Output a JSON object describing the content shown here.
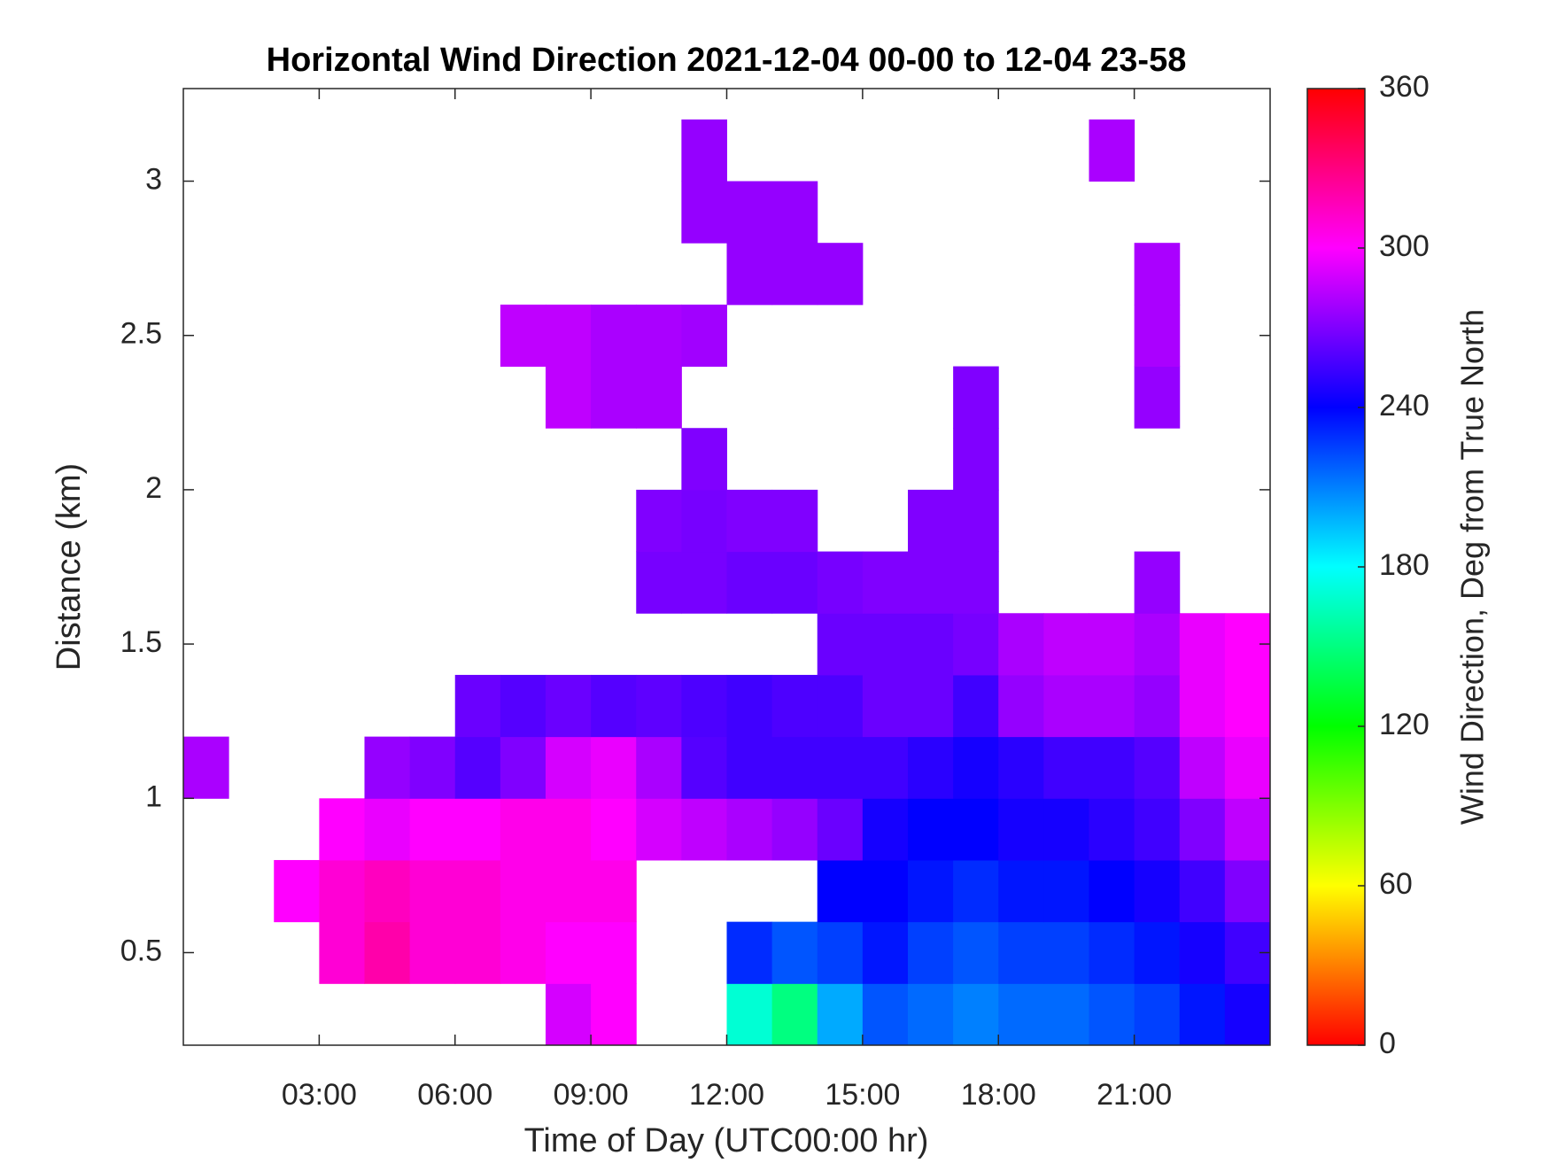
{
  "chart_data": {
    "type": "heatmap",
    "title": "Horizontal Wind Direction 2021-12-04 00-00 to 12-04 23-58",
    "xlabel": "Time of Day (UTC00:00 hr)",
    "ylabel": "Distance (km)",
    "colorbar_label": "Wind Direction, Deg from True North",
    "colormap": "hsv",
    "x": [
      0.5,
      1.5,
      2.5,
      3.5,
      4.5,
      5.5,
      6.5,
      7.5,
      8.5,
      9.5,
      10.5,
      11.5,
      12.5,
      13.5,
      14.5,
      15.5,
      16.5,
      17.5,
      18.5,
      19.5,
      20.5,
      21.5,
      22.5,
      23.5
    ],
    "y": [
      0.3,
      0.5,
      0.7,
      0.9,
      1.1,
      1.3,
      1.5,
      1.7,
      1.9,
      2.1,
      2.3,
      2.5,
      2.7,
      2.9,
      3.1
    ],
    "z": [
      [
        null,
        null,
        null,
        null,
        null,
        null,
        null,
        null,
        290,
        300,
        null,
        null,
        170,
        150,
        200,
        220,
        215,
        210,
        215,
        215,
        220,
        225,
        235,
        245
      ],
      [
        null,
        null,
        null,
        310,
        320,
        310,
        310,
        305,
        300,
        300,
        null,
        null,
        230,
        220,
        225,
        235,
        225,
        220,
        225,
        225,
        230,
        235,
        245,
        255
      ],
      [
        null,
        null,
        300,
        310,
        315,
        310,
        310,
        305,
        305,
        305,
        null,
        null,
        null,
        null,
        240,
        240,
        235,
        230,
        235,
        235,
        240,
        245,
        255,
        270
      ],
      [
        null,
        null,
        null,
        300,
        295,
        300,
        300,
        305,
        305,
        300,
        290,
        285,
        280,
        275,
        265,
        245,
        240,
        240,
        245,
        245,
        250,
        255,
        270,
        285
      ],
      [
        280,
        null,
        null,
        null,
        275,
        270,
        260,
        270,
        290,
        295,
        280,
        260,
        255,
        255,
        255,
        255,
        250,
        245,
        250,
        255,
        255,
        260,
        285,
        295
      ],
      [
        null,
        null,
        null,
        null,
        null,
        null,
        265,
        260,
        265,
        260,
        262,
        258,
        255,
        258,
        258,
        265,
        265,
        255,
        275,
        280,
        280,
        275,
        295,
        300
      ],
      [
        null,
        null,
        null,
        null,
        null,
        null,
        null,
        null,
        null,
        null,
        null,
        null,
        null,
        null,
        265,
        265,
        265,
        268,
        280,
        285,
        285,
        280,
        295,
        300
      ],
      [
        null,
        null,
        null,
        null,
        null,
        null,
        null,
        null,
        null,
        null,
        268,
        268,
        265,
        265,
        268,
        270,
        270,
        270,
        null,
        null,
        null,
        275,
        null,
        null
      ],
      [
        null,
        null,
        null,
        null,
        null,
        null,
        null,
        null,
        null,
        null,
        270,
        268,
        270,
        270,
        null,
        null,
        270,
        270,
        null,
        null,
        null,
        null,
        null,
        null
      ],
      [
        null,
        null,
        null,
        null,
        null,
        null,
        null,
        null,
        null,
        null,
        null,
        270,
        null,
        null,
        null,
        null,
        null,
        270,
        null,
        null,
        null,
        null,
        null,
        null
      ],
      [
        null,
        null,
        null,
        null,
        null,
        null,
        null,
        null,
        285,
        280,
        280,
        null,
        null,
        null,
        null,
        null,
        null,
        270,
        null,
        null,
        null,
        275,
        null,
        null
      ],
      [
        null,
        null,
        null,
        null,
        null,
        null,
        null,
        285,
        285,
        280,
        280,
        278,
        null,
        null,
        null,
        null,
        null,
        null,
        null,
        null,
        null,
        280,
        null,
        null
      ],
      [
        null,
        null,
        null,
        null,
        null,
        null,
        null,
        null,
        null,
        null,
        null,
        null,
        275,
        275,
        275,
        null,
        null,
        null,
        null,
        null,
        null,
        280,
        null,
        null
      ],
      [
        null,
        null,
        null,
        null,
        null,
        null,
        null,
        null,
        null,
        null,
        null,
        275,
        275,
        275,
        null,
        null,
        null,
        null,
        null,
        null,
        null,
        null,
        null,
        null
      ],
      [
        null,
        null,
        null,
        null,
        null,
        null,
        null,
        null,
        null,
        null,
        null,
        275,
        null,
        null,
        null,
        null,
        null,
        null,
        null,
        null,
        280,
        null,
        null,
        null
      ]
    ],
    "xlim": [
      0,
      24
    ],
    "xticks": [
      {
        "value": 3,
        "label": "03:00"
      },
      {
        "value": 6,
        "label": "06:00"
      },
      {
        "value": 9,
        "label": "09:00"
      },
      {
        "value": 12,
        "label": "12:00"
      },
      {
        "value": 15,
        "label": "15:00"
      },
      {
        "value": 18,
        "label": "18:00"
      },
      {
        "value": 21,
        "label": "21:00"
      }
    ],
    "ylim": [
      0.2,
      3.3
    ],
    "yticks": [
      0.5,
      1,
      1.5,
      2,
      2.5,
      3
    ],
    "clim": [
      0,
      360
    ],
    "cticks": [
      0,
      60,
      120,
      180,
      240,
      300,
      360
    ]
  }
}
